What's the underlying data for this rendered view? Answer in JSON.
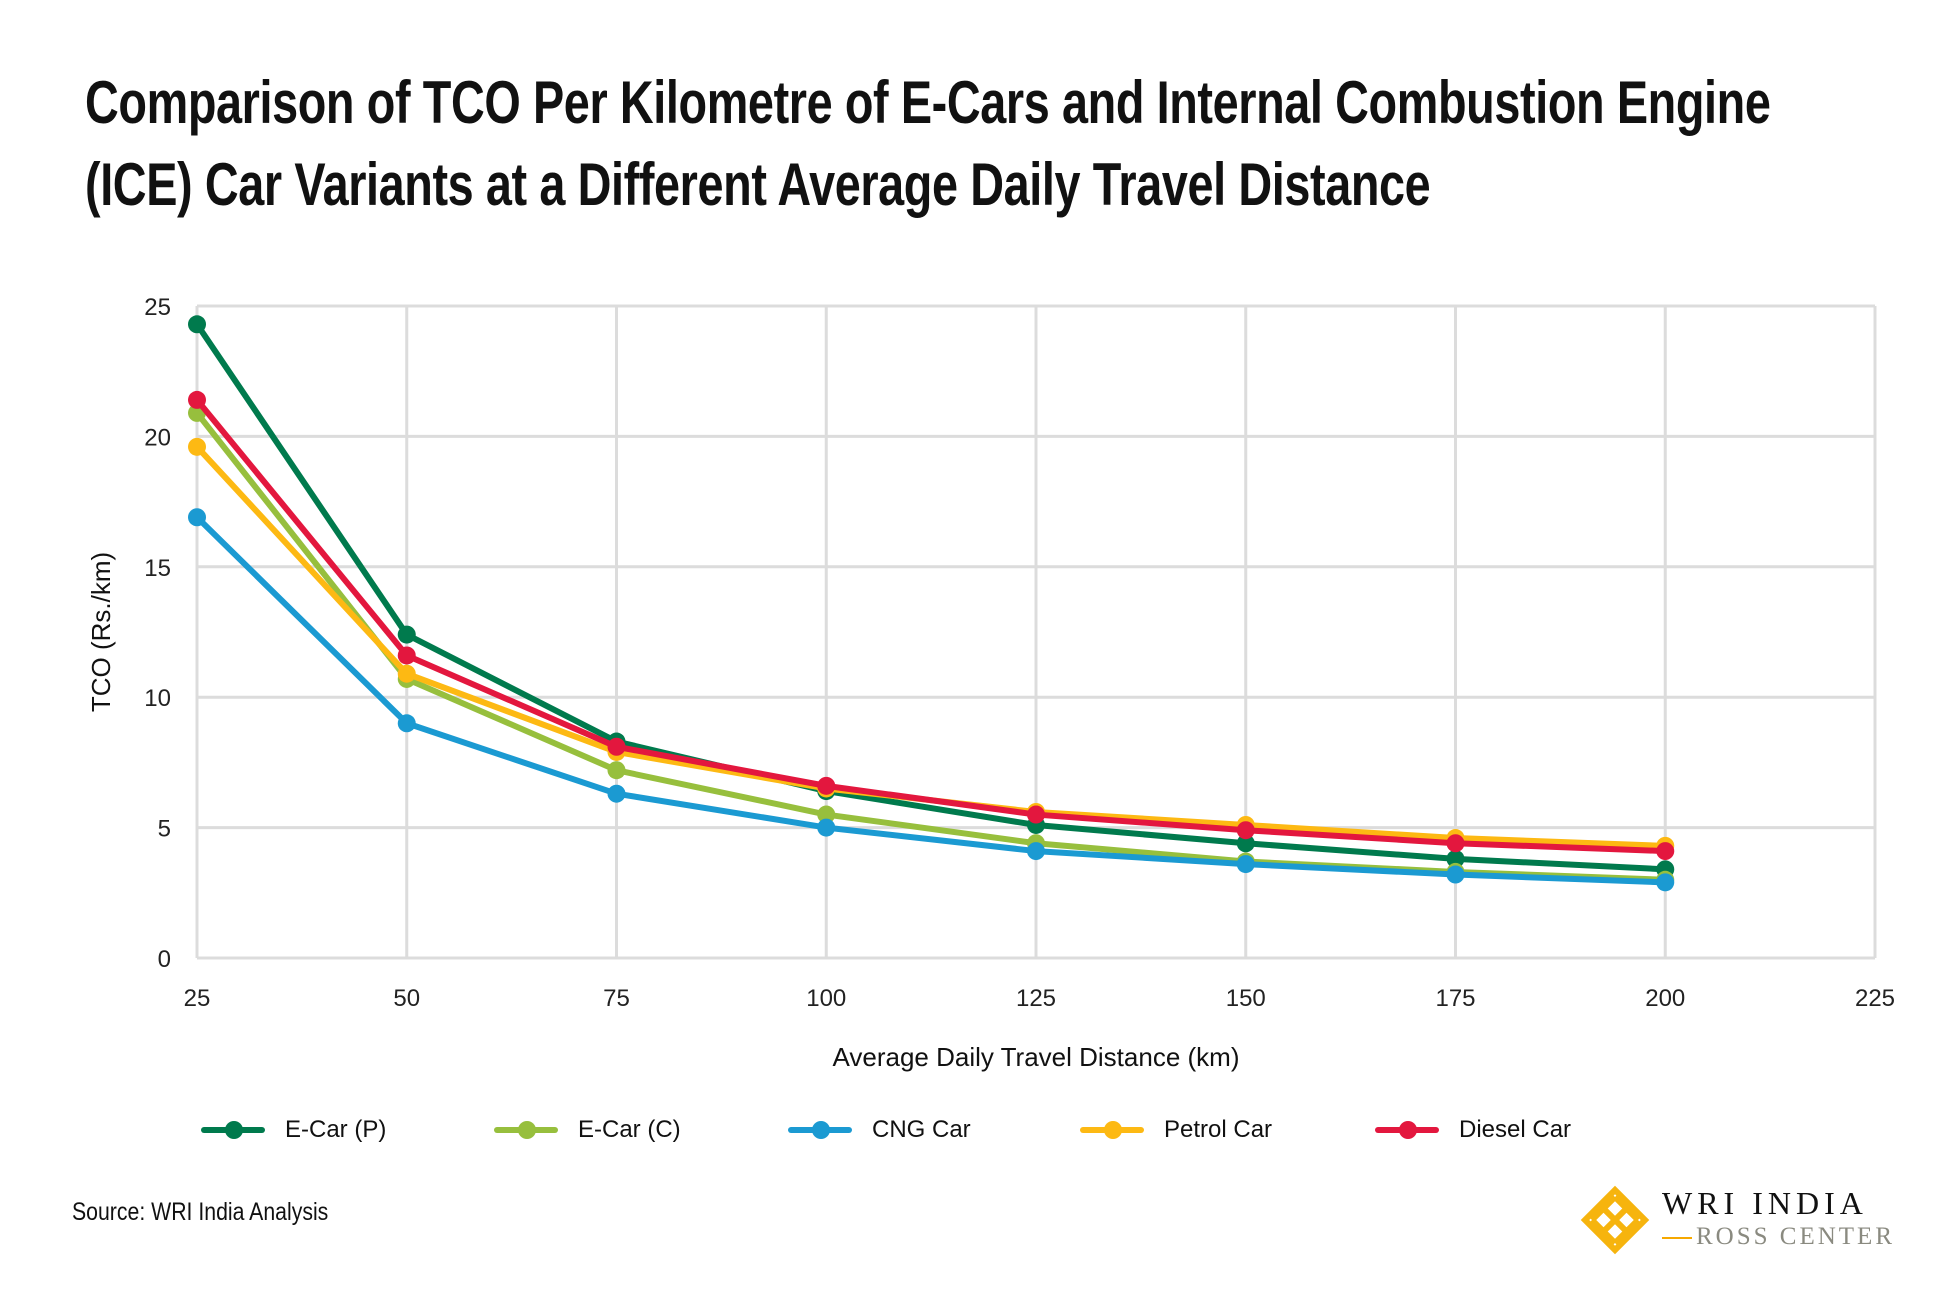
{
  "chart_data": {
    "type": "line",
    "title": "Comparison of TCO Per Kilometre of E-Cars and Internal Combustion Engine (ICE) Car Variants at a Different Average Daily Travel Distance",
    "xlabel": "Average Daily Travel Distance (km)",
    "ylabel": "TCO (Rs./km)",
    "xlim": [
      25,
      225
    ],
    "ylim": [
      0,
      25
    ],
    "xticks": [
      25,
      50,
      75,
      100,
      125,
      150,
      175,
      200,
      225
    ],
    "yticks": [
      0,
      5,
      10,
      15,
      20,
      25
    ],
    "grid": true,
    "legend_position": "bottom",
    "x": [
      25,
      50,
      75,
      100,
      125,
      150,
      175,
      200
    ],
    "series": [
      {
        "name": "E-Car (P)",
        "color": "#007a4d",
        "values": [
          24.3,
          12.4,
          8.3,
          6.4,
          5.1,
          4.4,
          3.8,
          3.4
        ]
      },
      {
        "name": "E-Car (C)",
        "color": "#97bf3d",
        "values": [
          20.9,
          10.7,
          7.2,
          5.5,
          4.4,
          3.7,
          3.3,
          3.0
        ]
      },
      {
        "name": "CNG Car",
        "color": "#1b9ad2",
        "values": [
          16.9,
          9.0,
          6.3,
          5.0,
          4.1,
          3.6,
          3.2,
          2.9
        ]
      },
      {
        "name": "Petrol Car",
        "color": "#fdb913",
        "values": [
          19.6,
          10.9,
          7.9,
          6.5,
          5.6,
          5.1,
          4.6,
          4.3
        ]
      },
      {
        "name": "Diesel Car",
        "color": "#e3173e",
        "values": [
          21.4,
          11.6,
          8.1,
          6.6,
          5.5,
          4.9,
          4.4,
          4.1
        ]
      }
    ]
  },
  "source": "Source: WRI India Analysis",
  "logo": {
    "line1": "WRI INDIA",
    "line2": "ROSS CENTER"
  }
}
